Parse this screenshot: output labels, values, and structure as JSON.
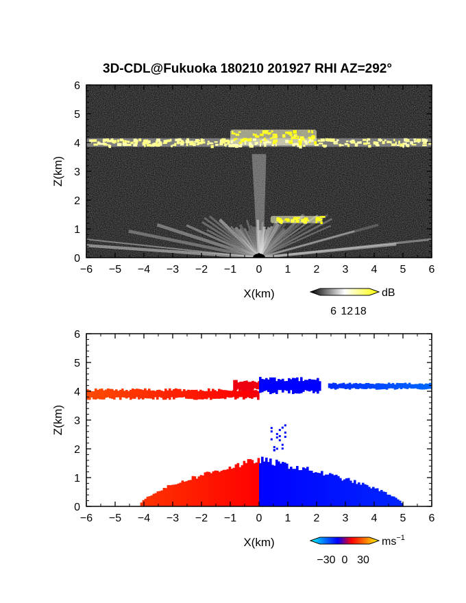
{
  "figure": {
    "title": "3D-CDL@Fukuoka 180210 201927 RHI AZ=292°"
  },
  "chart_data": [
    {
      "type": "heatmap",
      "panel": "backscatter",
      "xlabel": "X(km)",
      "ylabel": "Z(km)",
      "xlim": [
        -6,
        6
      ],
      "ylim": [
        0,
        6
      ],
      "xticks": [
        "−6",
        "−5",
        "−4",
        "−3",
        "−2",
        "−1",
        "0",
        "1",
        "2",
        "3",
        "4",
        "5",
        "6"
      ],
      "yticks": [
        "0",
        "1",
        "2",
        "3",
        "4",
        "5",
        "6"
      ],
      "grid": false,
      "background_color": "#111111",
      "colorbar": {
        "unit": "dB",
        "ticks": [
          "6",
          "12",
          "18"
        ],
        "tick_values": [
          6,
          12,
          18
        ],
        "range": [
          0,
          22
        ],
        "colors": [
          "#000000",
          "#ffffff",
          "#ffff00"
        ]
      },
      "features": [
        {
          "name": "cloud layer",
          "x": [
            -6,
            6
          ],
          "z_base": 3.85,
          "z_top": 4.15,
          "value_db": 14
        },
        {
          "name": "cloud top bump",
          "x": [
            -1,
            2
          ],
          "z_base": 3.9,
          "z_top": 4.45,
          "value_db": 19
        },
        {
          "name": "low layer echo",
          "x": [
            0.4,
            2.2
          ],
          "z_base": 1.2,
          "z_top": 1.45,
          "value_db": 19
        },
        {
          "name": "near-ground fan",
          "x": [
            -6,
            6
          ],
          "z_base": 0,
          "z_top": 1.3,
          "value_db": 10
        },
        {
          "name": "vertical streak",
          "x": [
            -0.05,
            0.15
          ],
          "z_base": 0,
          "z_top": 3.6,
          "value_db": 10
        }
      ]
    },
    {
      "type": "heatmap",
      "panel": "radial velocity",
      "xlabel": "X(km)",
      "ylabel": "Z(km)",
      "xlim": [
        -6,
        6
      ],
      "ylim": [
        0,
        6
      ],
      "xticks": [
        "−6",
        "−5",
        "−4",
        "−3",
        "−2",
        "−1",
        "0",
        "1",
        "2",
        "3",
        "4",
        "5",
        "6"
      ],
      "yticks": [
        "0",
        "1",
        "2",
        "3",
        "4",
        "5",
        "6"
      ],
      "grid": false,
      "colorbar": {
        "unit": "ms",
        "unit_exponent": "−1",
        "ticks": [
          "−30",
          "0",
          "30"
        ],
        "tick_values": [
          -30,
          0,
          30
        ],
        "range": [
          -40,
          40
        ],
        "colors": [
          "#00ffff",
          "#0077ff",
          "#0000ff",
          "#ff0000",
          "#ff7700",
          "#ffff00"
        ]
      },
      "features": [
        {
          "name": "upper layer left",
          "x": [
            -6,
            0
          ],
          "z_base": 3.7,
          "z_top": 4.1,
          "velocity_left": 18,
          "velocity_right": 7
        },
        {
          "name": "upper layer left top",
          "x": [
            -0.9,
            0
          ],
          "z_base": 4.0,
          "z_top": 4.4,
          "velocity": 7
        },
        {
          "name": "upper layer center right",
          "x": [
            0,
            2.1
          ],
          "z_base": 3.9,
          "z_top": 4.5,
          "velocity": -8
        },
        {
          "name": "upper layer far right",
          "x": [
            2.4,
            6
          ],
          "z_base": 4.05,
          "z_top": 4.3,
          "velocity_left": -14,
          "velocity_right": -22
        },
        {
          "name": "lower region left",
          "x": [
            -4.2,
            0
          ],
          "z_base": 0,
          "z_top": 1.75,
          "velocity_left": 15,
          "velocity_right": 8
        },
        {
          "name": "lower region right",
          "x": [
            0,
            5
          ],
          "z_base": 0,
          "z_top": 1.75,
          "velocity_left": -8,
          "velocity_right": -13
        },
        {
          "name": "sparse column",
          "x": [
            0.4,
            0.9
          ],
          "z_base": 1.9,
          "z_top": 2.9,
          "velocity": -9
        }
      ]
    }
  ]
}
